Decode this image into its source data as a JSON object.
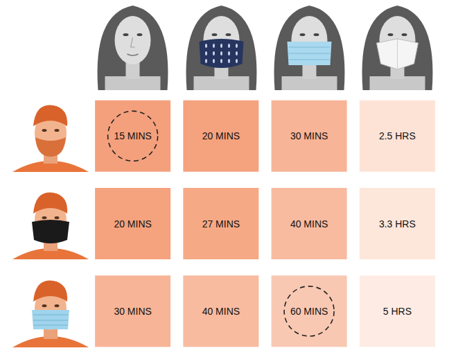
{
  "chart_data": {
    "type": "heatmap",
    "cells": [
      [
        15,
        20,
        30,
        150
      ],
      [
        20,
        27,
        40,
        198
      ],
      [
        30,
        40,
        60,
        300
      ]
    ],
    "value_labels": [
      [
        "15 MINS",
        "20 MINS",
        "30 MINS",
        "2.5 HRS"
      ],
      [
        "20 MINS",
        "27 MINS",
        "40 MINS",
        "3.3 HRS"
      ],
      [
        "30 MINS",
        "40 MINS",
        "60 MINS",
        "5 HRS"
      ]
    ],
    "colors": [
      [
        "#f4a07c",
        "#f5a27e",
        "#f7b496",
        "#fde3d6"
      ],
      [
        "#f5a27e",
        "#f6a985",
        "#f8bba0",
        "#fde6da"
      ],
      [
        "#f7b496",
        "#f8bba0",
        "#f9c8b2",
        "#feece4"
      ]
    ],
    "data_labels": true,
    "tick_labels": false
  }
}
